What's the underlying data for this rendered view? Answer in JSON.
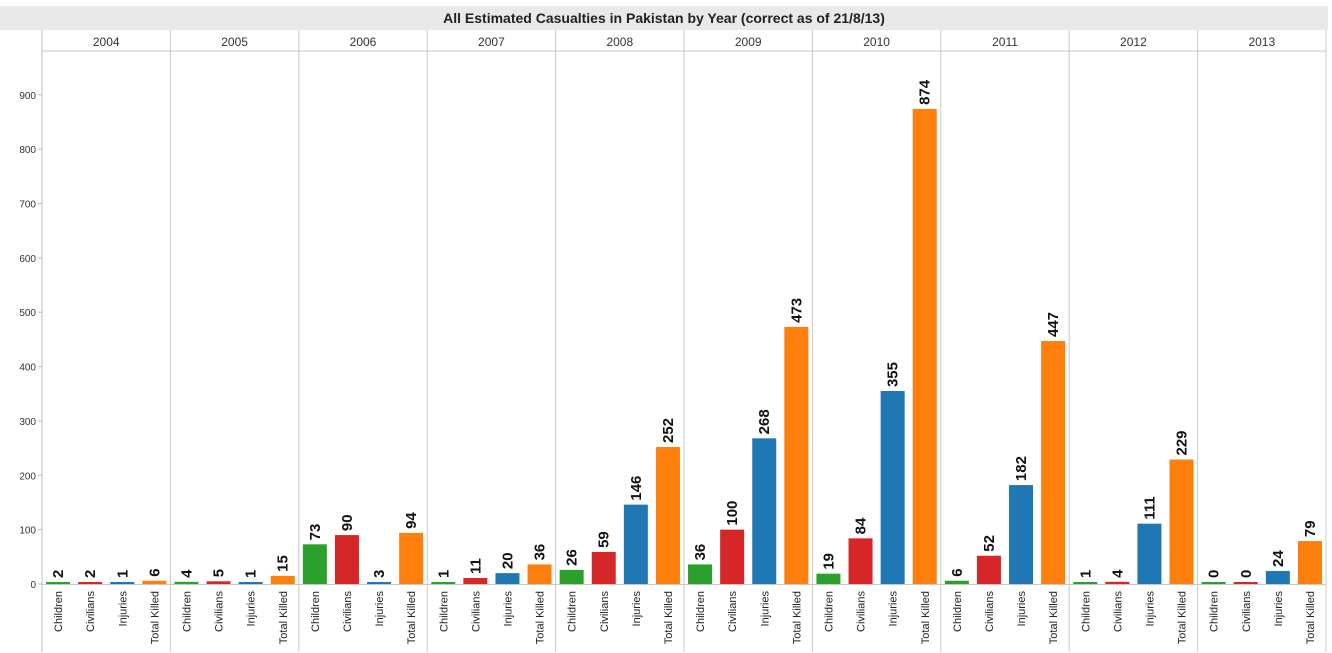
{
  "chart_data": {
    "type": "bar",
    "title": "All Estimated Casualties in Pakistan by Year (correct as of 21/8/13)",
    "xlabel": "",
    "ylabel": "",
    "ylim": [
      0,
      990
    ],
    "yticks": [
      0,
      100,
      200,
      300,
      400,
      500,
      600,
      700,
      800,
      900
    ],
    "grid": false,
    "years": [
      "2004",
      "2005",
      "2006",
      "2007",
      "2008",
      "2009",
      "2010",
      "2011",
      "2012",
      "2013"
    ],
    "categories": [
      "Children",
      "Civilians",
      "Injuries",
      "Total Killed"
    ],
    "colors": {
      "Children": "#2ca02c",
      "Civilians": "#d62728",
      "Injuries": "#1f77b4",
      "Total Killed": "#ff7f0e"
    },
    "values": [
      [
        2,
        2,
        1,
        6
      ],
      [
        4,
        5,
        1,
        15
      ],
      [
        73,
        90,
        3,
        94
      ],
      [
        1,
        11,
        20,
        36
      ],
      [
        26,
        59,
        146,
        252
      ],
      [
        36,
        100,
        268,
        473
      ],
      [
        19,
        84,
        355,
        874
      ],
      [
        6,
        52,
        182,
        447
      ],
      [
        1,
        4,
        111,
        229
      ],
      [
        0,
        0,
        24,
        79
      ]
    ]
  }
}
